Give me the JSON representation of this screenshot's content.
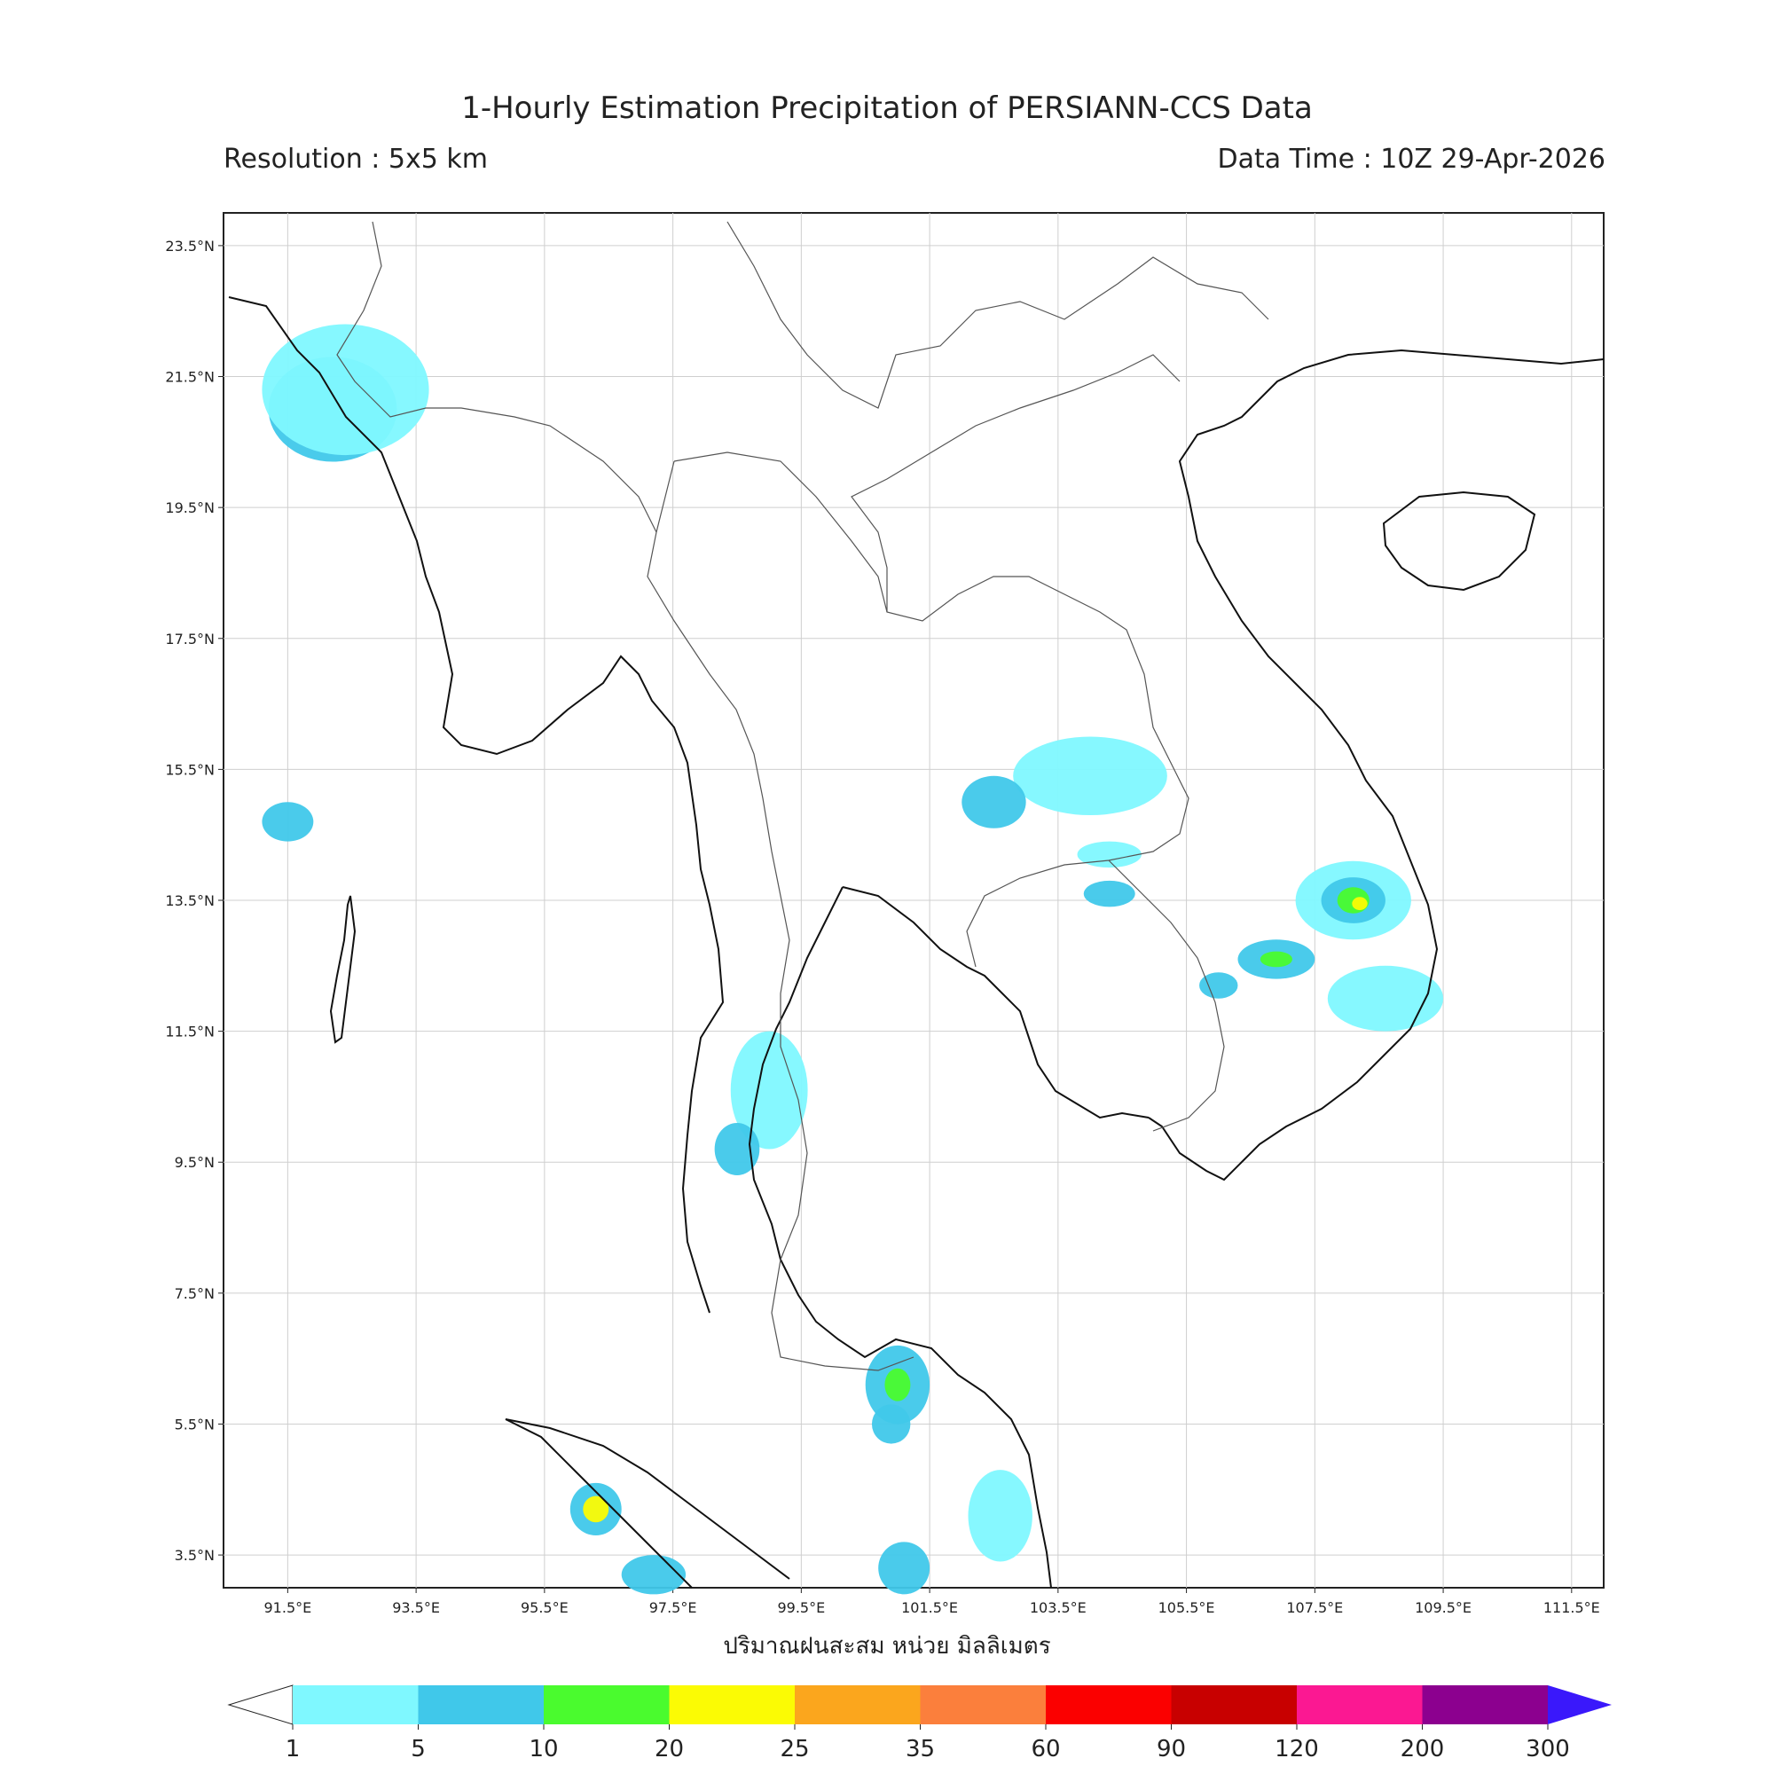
{
  "title": "1-Hourly Estimation Precipitation of PERSIANN-CCS Data",
  "resolution": "Resolution : 5x5 km",
  "data_time": "Data Time : 10Z 29-Apr-2026",
  "xaxis_caption": "ปริมาณฝนสะสม หน่วย มิลลิเมตร",
  "lat_labels": [
    "23.5°N",
    "21.5°N",
    "19.5°N",
    "17.5°N",
    "15.5°N",
    "13.5°N",
    "11.5°N",
    "9.5°N",
    "7.5°N",
    "5.5°N",
    "3.5°N"
  ],
  "lon_labels": [
    "91.5°E",
    "93.5°E",
    "95.5°E",
    "97.5°E",
    "99.5°E",
    "101.5°E",
    "103.5°E",
    "105.5°E",
    "107.5°E",
    "109.5°E",
    "111.5°E"
  ],
  "colorbar": {
    "labels": [
      "1",
      "5",
      "10",
      "20",
      "25",
      "35",
      "60",
      "90",
      "120",
      "200",
      "300"
    ],
    "colors": [
      "#7ff8ff",
      "#40c8ea",
      "#4afb2e",
      "#fbfb04",
      "#fba61d",
      "#fb7f3c",
      "#fb0000",
      "#c80000",
      "#fb1892",
      "#8c008f"
    ],
    "over_color": "#3a18fb"
  },
  "rain_cells": [
    {
      "lon": 92.2,
      "lat": 21.0,
      "rx": 1.0,
      "ry": 0.8,
      "level": 2
    },
    {
      "lon": 92.4,
      "lat": 21.3,
      "rx": 1.3,
      "ry": 1.0,
      "level": 1
    },
    {
      "lon": 91.5,
      "lat": 14.7,
      "rx": 0.4,
      "ry": 0.3,
      "level": 2
    },
    {
      "lon": 104.0,
      "lat": 15.4,
      "rx": 1.2,
      "ry": 0.6,
      "level": 1
    },
    {
      "lon": 102.5,
      "lat": 15.0,
      "rx": 0.5,
      "ry": 0.4,
      "level": 2
    },
    {
      "lon": 108.1,
      "lat": 13.5,
      "rx": 0.9,
      "ry": 0.6,
      "level": 1
    },
    {
      "lon": 108.1,
      "lat": 13.5,
      "rx": 0.5,
      "ry": 0.35,
      "level": 2
    },
    {
      "lon": 108.1,
      "lat": 13.5,
      "rx": 0.25,
      "ry": 0.2,
      "level": 3
    },
    {
      "lon": 108.2,
      "lat": 13.45,
      "rx": 0.12,
      "ry": 0.1,
      "level": 4
    },
    {
      "lon": 106.9,
      "lat": 12.6,
      "rx": 0.6,
      "ry": 0.3,
      "level": 2
    },
    {
      "lon": 106.9,
      "lat": 12.6,
      "rx": 0.25,
      "ry": 0.12,
      "level": 3
    },
    {
      "lon": 108.6,
      "lat": 12.0,
      "rx": 0.9,
      "ry": 0.5,
      "level": 1
    },
    {
      "lon": 99.0,
      "lat": 10.6,
      "rx": 0.6,
      "ry": 0.9,
      "level": 1
    },
    {
      "lon": 98.5,
      "lat": 9.7,
      "rx": 0.35,
      "ry": 0.4,
      "level": 2
    },
    {
      "lon": 101.0,
      "lat": 6.1,
      "rx": 0.5,
      "ry": 0.6,
      "level": 2
    },
    {
      "lon": 101.0,
      "lat": 6.1,
      "rx": 0.2,
      "ry": 0.25,
      "level": 3
    },
    {
      "lon": 100.9,
      "lat": 5.5,
      "rx": 0.3,
      "ry": 0.3,
      "level": 2
    },
    {
      "lon": 96.3,
      "lat": 4.2,
      "rx": 0.4,
      "ry": 0.4,
      "level": 2
    },
    {
      "lon": 96.3,
      "lat": 4.2,
      "rx": 0.2,
      "ry": 0.2,
      "level": 4
    },
    {
      "lon": 102.6,
      "lat": 4.1,
      "rx": 0.5,
      "ry": 0.7,
      "level": 1
    },
    {
      "lon": 101.1,
      "lat": 3.3,
      "rx": 0.4,
      "ry": 0.4,
      "level": 2
    },
    {
      "lon": 97.2,
      "lat": 3.2,
      "rx": 0.5,
      "ry": 0.3,
      "level": 2
    },
    {
      "lon": 106.0,
      "lat": 12.2,
      "rx": 0.3,
      "ry": 0.2,
      "level": 2
    },
    {
      "lon": 104.3,
      "lat": 13.6,
      "rx": 0.4,
      "ry": 0.2,
      "level": 2
    },
    {
      "lon": 104.3,
      "lat": 14.2,
      "rx": 0.5,
      "ry": 0.2,
      "level": 1
    }
  ]
}
